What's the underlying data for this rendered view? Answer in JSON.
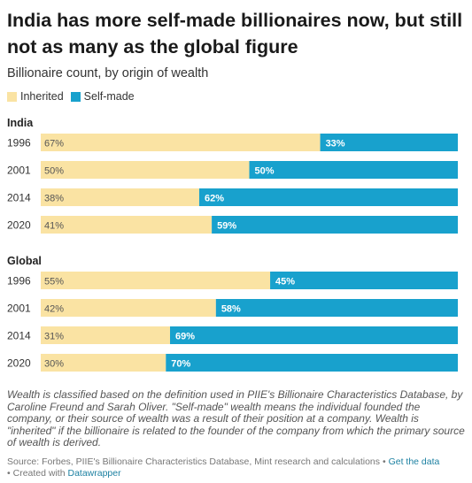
{
  "title": "India has more self-made billionaires now, but still not as many as the global figure",
  "subtitle": "Billionaire count, by origin of wealth",
  "legend": [
    {
      "label": "Inherited",
      "color": "#fae3a3"
    },
    {
      "label": "Self-made",
      "color": "#18a1cd"
    }
  ],
  "colors": {
    "inherited": "#fae3a3",
    "selfmade": "#18a1cd"
  },
  "notes": "Wealth is classified based on the definition used in PIIE's Billionaire Characteristics Database, by Caroline Freund and Sarah Oliver. \"Self-made\" wealth means the individual founded the company, or their source of wealth was a result of their position at a company. Wealth is \"inherited\" if the billionaire is related to the founder of the company from which the primary source of wealth is derived.",
  "source": {
    "text": "Source: Forbes, PIIE's Billionaire Characteristics Database, Mint research and calculations",
    "separator": "•",
    "get_data": "Get the data",
    "created_with": "Created with",
    "tool": "Datawrapper"
  },
  "chart_data": {
    "type": "bar",
    "orientation": "horizontal",
    "stacked": true,
    "unit": "%",
    "groups": [
      {
        "name": "India",
        "categories": [
          "1996",
          "2001",
          "2014",
          "2020"
        ],
        "series": [
          {
            "name": "Inherited",
            "values": [
              67,
              50,
              38,
              41
            ]
          },
          {
            "name": "Self-made",
            "values": [
              33,
              50,
              62,
              59
            ]
          }
        ]
      },
      {
        "name": "Global",
        "categories": [
          "1996",
          "2001",
          "2014",
          "2020"
        ],
        "series": [
          {
            "name": "Inherited",
            "values": [
              55,
              42,
              31,
              30
            ]
          },
          {
            "name": "Self-made",
            "values": [
              45,
              58,
              69,
              70
            ]
          }
        ]
      }
    ],
    "xlim": [
      0,
      100
    ],
    "legend_position": "top-left",
    "grid": false
  }
}
